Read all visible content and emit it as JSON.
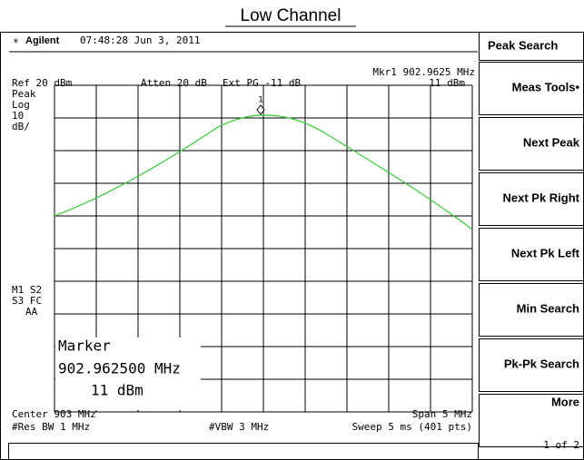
{
  "title": "Low Channel",
  "header": {
    "brand": "Agilent",
    "timestamp": "07:48:28  Jun 3, 2011"
  },
  "status": {
    "ref": "Ref 20 dBm",
    "atten": "Atten 20 dB",
    "ext_pg": "Ext PG -11 dB",
    "marker_freq": "Mkr1  902.9625 MHz",
    "marker_level": "11 dBm"
  },
  "left_labels": [
    "Peak",
    "Log",
    "10",
    "dB/"
  ],
  "flags": [
    "M1  S2",
    "S3  FC",
    "AA"
  ],
  "marker_readout": {
    "label": "Marker",
    "freq": "902.962500 MHz",
    "level": "11 dBm",
    "id": "1"
  },
  "footer": {
    "center": "Center 903 MHz",
    "span": "Span 5 MHz",
    "rbw": "#Res BW 1 MHz",
    "vbw": "#VBW 3 MHz",
    "sweep": "Sweep 5 ms (401 pts)"
  },
  "softkeys": {
    "header": "Peak Search",
    "keys": [
      "Meas Tools•",
      "Next Peak",
      "Next Pk Right",
      "Next Pk Left",
      "Min Search",
      "Pk-Pk Search",
      "More"
    ],
    "more_sub": "1 of 2"
  }
}
